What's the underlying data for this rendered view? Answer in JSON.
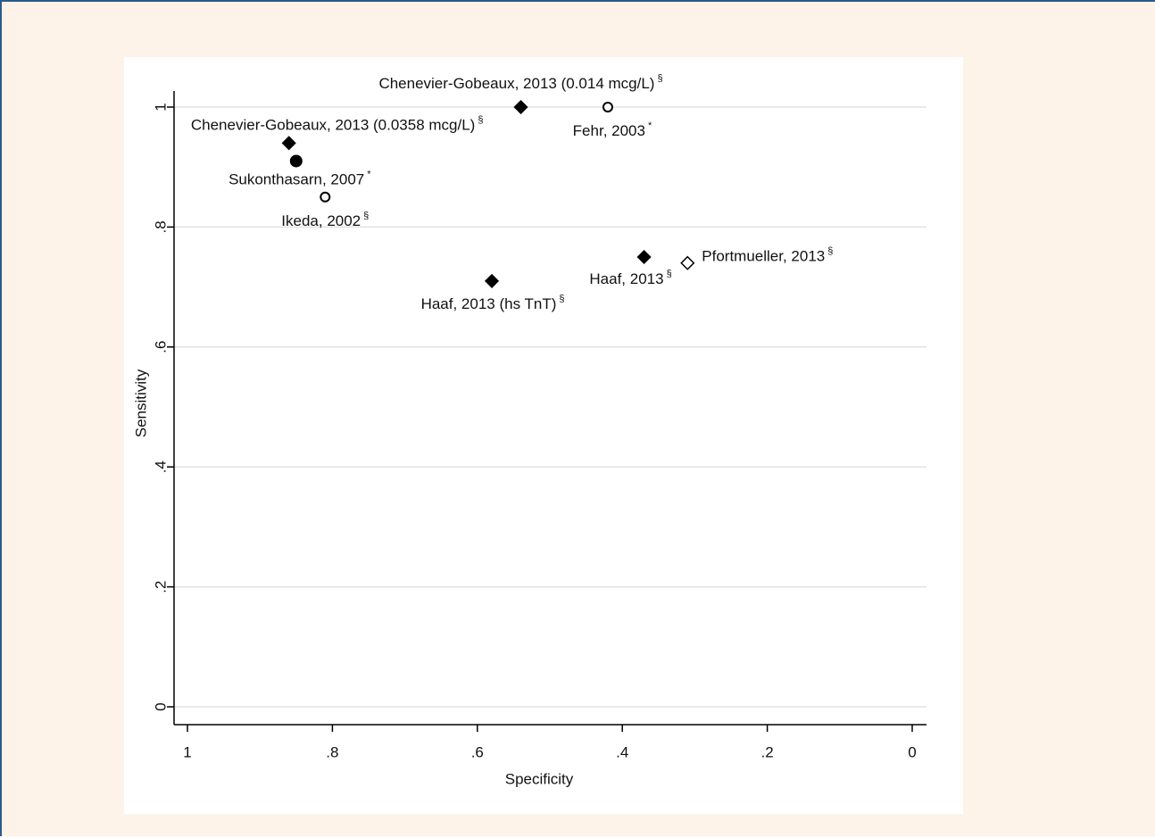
{
  "chart_data": {
    "type": "scatter",
    "x_label": "Specificity",
    "y_label": "Sensitivity",
    "xlim": [
      1,
      0
    ],
    "ylim": [
      0,
      1
    ],
    "xticks": [
      1,
      {
        "value": 0.8,
        "label": ".8"
      },
      {
        "value": 0.6,
        "label": ".6"
      },
      {
        "value": 0.4,
        "label": ".4"
      },
      {
        "value": 0.2,
        "label": ".2"
      },
      0
    ],
    "yticks": [
      0,
      {
        "value": 0.2,
        "label": ".2"
      },
      {
        "value": 0.4,
        "label": ".4"
      },
      {
        "value": 0.6,
        "label": ".6"
      },
      {
        "value": 0.8,
        "label": ".8"
      },
      1
    ],
    "grid": true,
    "color": "#000000",
    "points": [
      {
        "label": "Chenevier-Gobeaux, 2013 (0.014 mcg/L)",
        "note": "§",
        "marker": "diamond",
        "x": 0.54,
        "y": 1.0
      },
      {
        "label": "Fehr, 2003",
        "note": "*",
        "marker": "open-circle",
        "x": 0.42,
        "y": 1.0
      },
      {
        "label": "Chenevier-Gobeaux, 2013 (0.0358 mcg/L)",
        "note": "§",
        "marker": "diamond",
        "x": 0.86,
        "y": 0.94
      },
      {
        "label": "Sukonthasarn, 2007",
        "note": "*",
        "marker": "circle",
        "x": 0.85,
        "y": 0.91
      },
      {
        "label": "Ikeda, 2002",
        "note": "§",
        "marker": "open-circle",
        "x": 0.81,
        "y": 0.85
      },
      {
        "label": "Haaf, 2013 (hs TnT)",
        "note": "§",
        "marker": "diamond",
        "x": 0.58,
        "y": 0.71
      },
      {
        "label": "Haaf, 2013",
        "note": "§",
        "marker": "diamond",
        "x": 0.37,
        "y": 0.75
      },
      {
        "label": "Pfortmueller, 2013",
        "note": "§",
        "marker": "open-diamond",
        "x": 0.31,
        "y": 0.74
      }
    ]
  }
}
